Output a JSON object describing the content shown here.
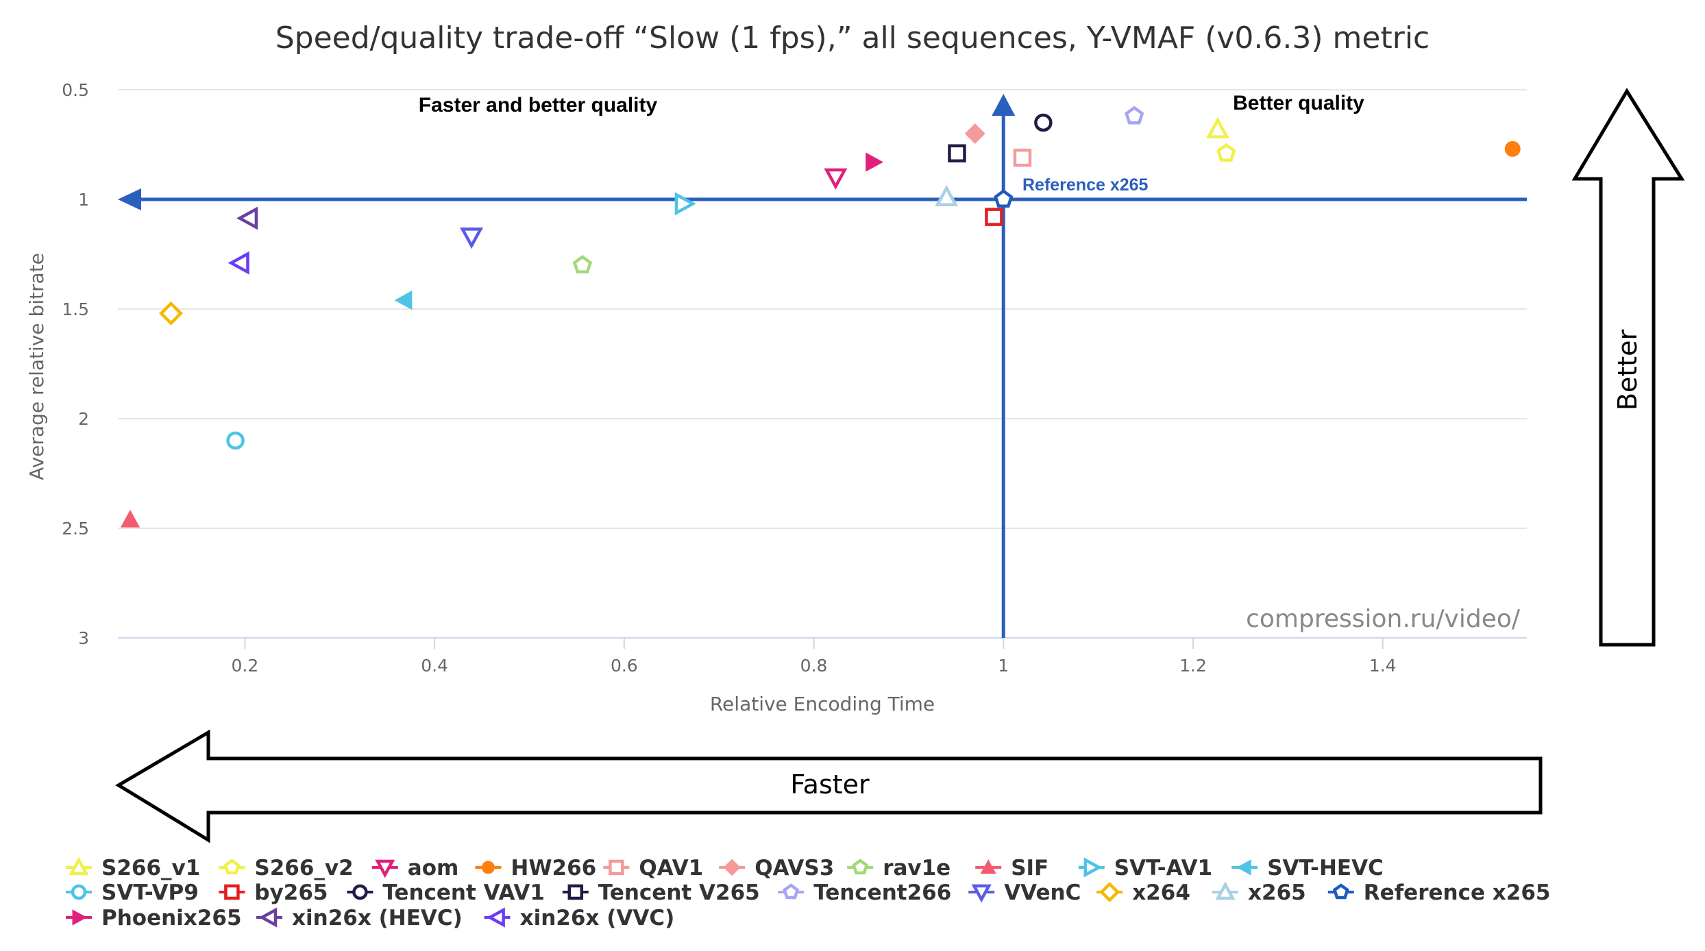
{
  "chart_data": {
    "type": "scatter",
    "title": "Speed/quality trade-off “Slow (1 fps),” all sequences, Y-VMAF (v0.6.3) metric",
    "xlabel": "Relative Encoding Time",
    "ylabel": "Average relative bitrate",
    "xlim": [
      0.066,
      1.552
    ],
    "ylim": [
      3,
      0.5
    ],
    "y_reversed": true,
    "grid": "horizontal",
    "legend_position": "bottom",
    "x_ticks": [
      "0.2",
      "0.4",
      "0.6",
      "0.8",
      "1",
      "1.2",
      "1.4"
    ],
    "x_tick_values": [
      0.2,
      0.4,
      0.6,
      0.8,
      1.0,
      1.2,
      1.4
    ],
    "y_ticks": [
      "0.5",
      "1",
      "1.5",
      "2",
      "2.5",
      "3"
    ],
    "y_tick_values": [
      0.5,
      1.0,
      1.5,
      2.0,
      2.5,
      3.0
    ],
    "annotations": {
      "top_left_quadrant": "Faster and better quality",
      "top_right_quadrant": "Better quality",
      "reference_label": "Reference x265",
      "watermark": "compression.ru/video/",
      "better_arrow": "Better",
      "faster_arrow": "Faster"
    },
    "reference": {
      "x": 1.0,
      "y": 1.0
    },
    "series": [
      {
        "name": "S266_v1",
        "color": "#f0f04a",
        "marker": "triangle",
        "filled": false,
        "x": 1.226,
        "y": 0.68
      },
      {
        "name": "S266_v2",
        "color": "#f0f04a",
        "marker": "pentagon",
        "filled": false,
        "x": 1.235,
        "y": 0.79
      },
      {
        "name": "aom",
        "color": "#e0207a",
        "marker": "triangle-down",
        "filled": false,
        "x": 0.823,
        "y": 0.9
      },
      {
        "name": "HW266",
        "color": "#ff7f0e",
        "marker": "circle",
        "filled": true,
        "x": 1.537,
        "y": 0.77
      },
      {
        "name": "QAV1",
        "color": "#f59a9a",
        "marker": "square",
        "filled": false,
        "x": 1.02,
        "y": 0.81
      },
      {
        "name": "QAVS3",
        "color": "#f59a9a",
        "marker": "diamond",
        "filled": true,
        "x": 0.97,
        "y": 0.7
      },
      {
        "name": "rav1e",
        "color": "#a3d977",
        "marker": "pentagon",
        "filled": false,
        "x": 0.556,
        "y": 1.3
      },
      {
        "name": "SIF",
        "color": "#f45b6e",
        "marker": "triangle",
        "filled": true,
        "x": 0.079,
        "y": 2.46
      },
      {
        "name": "SVT-AV1",
        "color": "#4fc3e6",
        "marker": "triangle-right",
        "filled": false,
        "x": 0.663,
        "y": 1.02
      },
      {
        "name": "SVT-HEVC",
        "color": "#4fc3e6",
        "marker": "triangle-left",
        "filled": true,
        "x": 0.368,
        "y": 1.46
      },
      {
        "name": "SVT-VP9",
        "color": "#4fc3e6",
        "marker": "circle",
        "filled": false,
        "x": 0.19,
        "y": 2.1
      },
      {
        "name": "by265",
        "color": "#e02020",
        "marker": "square",
        "filled": false,
        "x": 0.99,
        "y": 1.08
      },
      {
        "name": "Tencent VAV1",
        "color": "#241a45",
        "marker": "circle",
        "filled": false,
        "x": 1.042,
        "y": 0.65
      },
      {
        "name": "Tencent V265",
        "color": "#241a45",
        "marker": "square",
        "filled": false,
        "x": 0.951,
        "y": 0.79
      },
      {
        "name": "Tencent266",
        "color": "#a6a6f0",
        "marker": "pentagon",
        "filled": false,
        "x": 1.138,
        "y": 0.62
      },
      {
        "name": "VVenC",
        "color": "#5b5be8",
        "marker": "triangle-down",
        "filled": false,
        "x": 0.439,
        "y": 1.17
      },
      {
        "name": "x264",
        "color": "#f5b800",
        "marker": "diamond",
        "filled": false,
        "x": 0.122,
        "y": 1.52
      },
      {
        "name": "x265",
        "color": "#a8d0e6",
        "marker": "triangle",
        "filled": false,
        "x": 0.94,
        "y": 0.99
      },
      {
        "name": "Reference x265",
        "color": "#1f5bbf",
        "marker": "pentagon",
        "filled": false,
        "x": 1.0,
        "y": 1.0
      },
      {
        "name": "Phoenix265",
        "color": "#e0207a",
        "marker": "triangle-right",
        "filled": true,
        "x": 0.863,
        "y": 0.83
      },
      {
        "name": "xin26x (HEVC)",
        "color": "#6b3fa0",
        "marker": "triangle-left",
        "filled": false,
        "x": 0.204,
        "y": 1.086
      },
      {
        "name": "xin26x (VVC)",
        "color": "#6a3df5",
        "marker": "triangle-left",
        "filled": false,
        "x": 0.195,
        "y": 1.29
      }
    ],
    "legend_rows": [
      [
        "S266_v1",
        "S266_v2",
        "aom",
        "HW266",
        "QAV1",
        "QAVS3",
        "rav1e",
        "SIF",
        "SVT-AV1",
        "SVT-HEVC"
      ],
      [
        "SVT-VP9",
        "by265",
        "Tencent VAV1",
        "Tencent V265",
        "Tencent266",
        "VVenC",
        "x264",
        "x265",
        "Reference x265"
      ],
      [
        "Phoenix265",
        "xin26x (HEVC)",
        "xin26x (VVC)"
      ]
    ],
    "colors": {
      "reference_axis": "#2a5fbd",
      "grid": "#e6e6e6",
      "text": "#333333"
    }
  }
}
